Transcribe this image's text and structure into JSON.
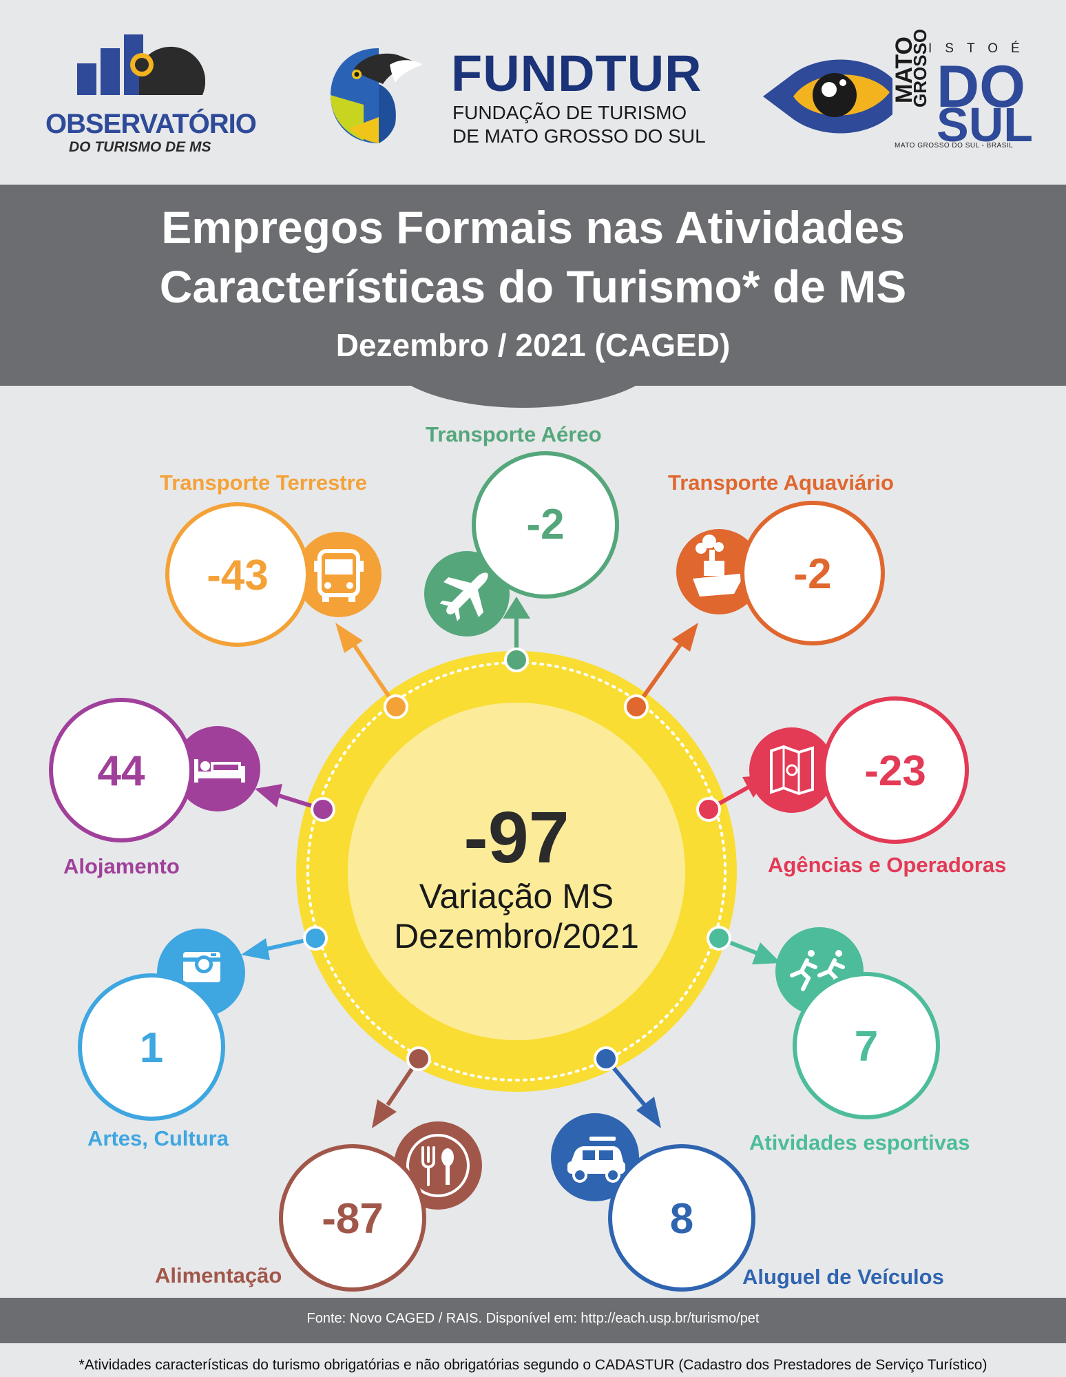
{
  "logos": {
    "observatorio_name": "OBSERVATÓRIO",
    "observatorio_sub": "DO TURISMO DE MS",
    "fundtur_name": "FUNDTUR",
    "fundtur_sub1": "FUNDAÇÃO DE TURISMO",
    "fundtur_sub2": "DE MATO GROSSO DO SUL",
    "ms_istoe": "ISTOÉ",
    "ms_mato": "MATO",
    "ms_grosso": "GROSSO",
    "ms_do": "DO",
    "ms_sul": "SUL",
    "ms_brasil": "MATO GROSSO DO SUL - BRASIL"
  },
  "title": {
    "line1": "Empregos Formais nas Atividades",
    "line2": "Características do Turismo* de MS",
    "line3": "Dezembro / 2021 (CAGED)"
  },
  "center": {
    "value": "-97",
    "label1": "Variação MS",
    "label2": "Dezembro/2021"
  },
  "activities": {
    "transporte_aereo": {
      "label": "Transporte Aéreo",
      "value": "-2",
      "color": "#55a77b",
      "icon": "airplane-icon"
    },
    "transporte_terrestre": {
      "label": "Transporte Terrestre",
      "value": "-43",
      "color": "#f4a238",
      "icon": "bus-icon"
    },
    "transporte_aquaviario": {
      "label": "Transporte Aquaviário",
      "value": "-2",
      "color": "#e0672e",
      "icon": "ship-icon"
    },
    "alojamento": {
      "label": "Alojamento",
      "value": "44",
      "color": "#a0409a",
      "icon": "bed-icon"
    },
    "agencias": {
      "label": "Agências e Operadoras",
      "value": "-23",
      "color": "#e33a56",
      "icon": "map-icon"
    },
    "artes": {
      "label": "Artes, Cultura",
      "value": "1",
      "color": "#3ea6e0",
      "icon": "camera-icon"
    },
    "esportivas": {
      "label": "Atividades esportivas",
      "value": "7",
      "color": "#4cbc9b",
      "icon": "runners-icon"
    },
    "alimentacao": {
      "label": "Alimentação",
      "value": "-87",
      "color": "#a0574a",
      "icon": "cutlery-icon"
    },
    "aluguel": {
      "label": "Aluguel de Veículos",
      "value": "8",
      "color": "#2f64b0",
      "icon": "car-icon"
    }
  },
  "footer": {
    "source": "Fonte: Novo CAGED / RAIS. Disponível em: http://each.usp.br/turismo/pet",
    "note": "*Atividades características do turismo obrigatórias e não obrigatórias segundo o CADASTUR (Cadastro dos Prestadores de Serviço Turístico)"
  }
}
